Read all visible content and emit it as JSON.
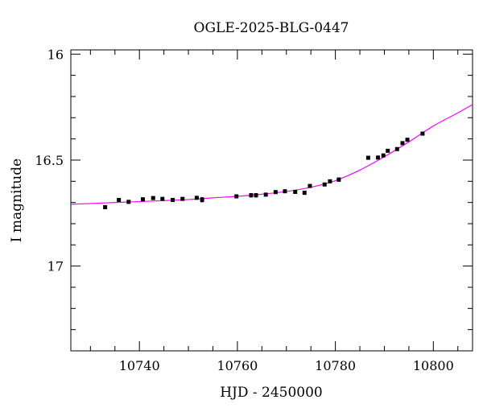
{
  "chart_data": {
    "type": "scatter",
    "title": "OGLE-2025-BLG-0447",
    "xlabel": "HJD - 2450000",
    "ylabel": "I magnitude",
    "xlim": [
      10726,
      10808
    ],
    "ylim": [
      17.4,
      15.98
    ],
    "y_inverted": true,
    "grid": false,
    "x_major_ticks": [
      10740,
      10760,
      10780,
      10800
    ],
    "x_tick_labels": [
      "10740",
      "10760",
      "10780",
      "10800"
    ],
    "y_major_ticks": [
      16,
      16.5,
      17
    ],
    "y_tick_labels": [
      "16",
      "16.5",
      "17"
    ],
    "series": [
      {
        "kind": "points",
        "color": "#000000",
        "x": [
          10733.0,
          10735.8,
          10737.8,
          10740.7,
          10742.8,
          10744.7,
          10746.8,
          10748.8,
          10751.7,
          10752.8,
          10759.8,
          10762.8,
          10763.8,
          10765.8,
          10767.8,
          10769.7,
          10771.8,
          10773.7,
          10774.8,
          10777.8,
          10778.9,
          10780.7,
          10786.7,
          10788.7,
          10789.8,
          10790.7,
          10792.6,
          10793.7,
          10794.7,
          10797.8
        ],
        "y": [
          16.722,
          16.688,
          16.697,
          16.685,
          16.679,
          16.683,
          16.688,
          16.683,
          16.678,
          16.687,
          16.671,
          16.666,
          16.666,
          16.663,
          16.651,
          16.647,
          16.65,
          16.654,
          16.622,
          16.615,
          16.6,
          16.592,
          16.489,
          16.488,
          16.478,
          16.456,
          16.448,
          16.42,
          16.404,
          16.375
        ],
        "yerr": [
          0.007,
          0.006,
          0.006,
          0.006,
          0.006,
          0.006,
          0.006,
          0.006,
          0.006,
          0.01,
          0.006,
          0.008,
          0.008,
          0.006,
          0.006,
          0.006,
          0.006,
          0.008,
          0.006,
          0.006,
          0.006,
          0.008,
          0.006,
          0.006,
          0.006,
          0.006,
          0.006,
          0.006,
          0.006,
          0.006
        ]
      },
      {
        "kind": "model-line",
        "color": "#ff00ff",
        "x": [
          10726,
          10730,
          10735,
          10740,
          10745,
          10750,
          10755,
          10760,
          10765,
          10770,
          10775,
          10780,
          10785,
          10790,
          10795,
          10800,
          10805,
          10808
        ],
        "y": [
          16.708,
          16.705,
          16.7,
          16.696,
          16.691,
          16.686,
          16.678,
          16.671,
          16.661,
          16.648,
          16.628,
          16.597,
          16.547,
          16.484,
          16.414,
          16.339,
          16.277,
          16.238
        ]
      }
    ]
  }
}
